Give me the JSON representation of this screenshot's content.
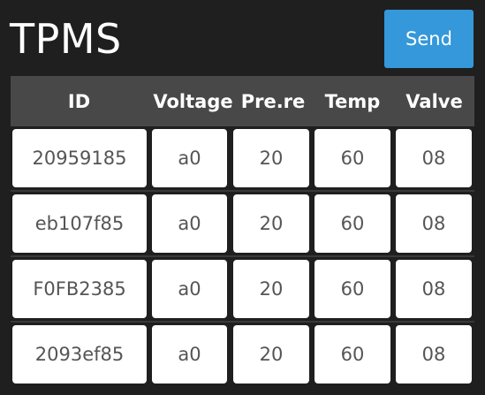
{
  "app": {
    "title": "TPMS",
    "send_label": "Send"
  },
  "table": {
    "columns": [
      "ID",
      "Voltage",
      "Pre.re",
      "Temp",
      "Valve"
    ],
    "rows": [
      [
        "20959185",
        "a0",
        "20",
        "60",
        "08"
      ],
      [
        "eb107f85",
        "a0",
        "20",
        "60",
        "08"
      ],
      [
        "F0FB2385",
        "a0",
        "20",
        "60",
        "08"
      ],
      [
        "2093ef85",
        "a0",
        "20",
        "60",
        "08"
      ]
    ]
  },
  "colors": {
    "background": "#1f1f1f",
    "header_background": "#484848",
    "accent": "#3498db",
    "cell_background": "#ffffff",
    "cell_text": "#555555"
  }
}
